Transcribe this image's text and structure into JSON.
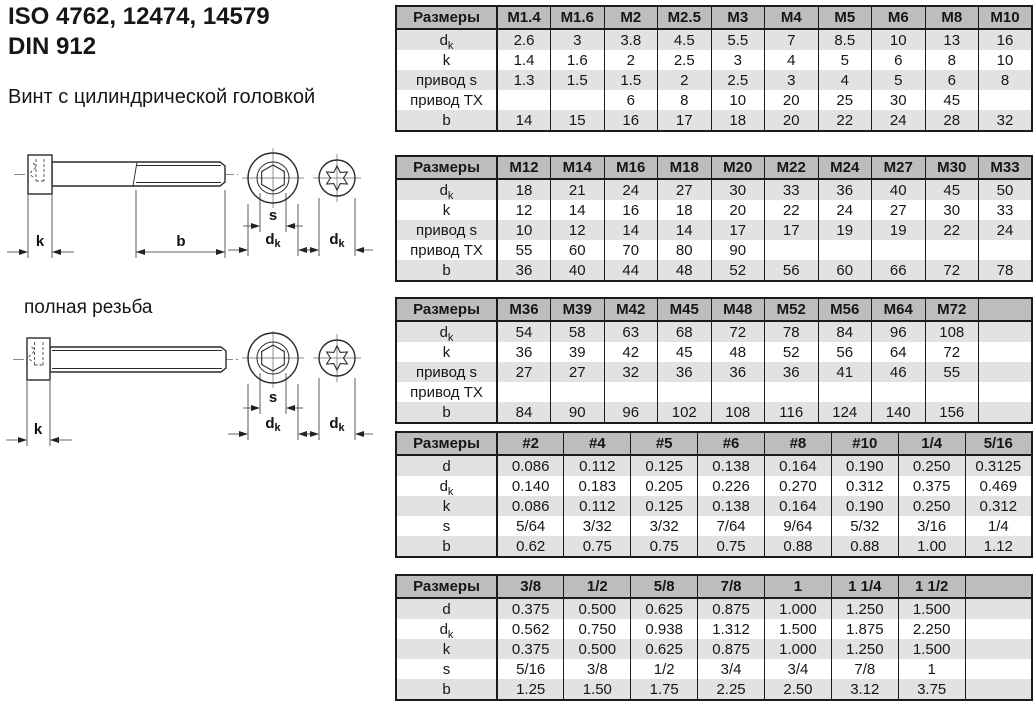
{
  "page": {
    "title_line1": "ISO 4762, 12474, 14579",
    "title_line2": "DIN 912",
    "subtitle": "Винт с цилиндрической головкой",
    "full_thread_label": "полная резьба"
  },
  "diagram_labels": {
    "k": "k",
    "b": "b",
    "s": "s",
    "d_base": "d",
    "d_sub": "k"
  },
  "colors": {
    "header_bg": "#bdbdbd",
    "stripe_bg": "#e2e2e2",
    "border": "#1b1b1b",
    "text": "#161616"
  },
  "tables": [
    {
      "columns": [
        "Размеры",
        "M1.4",
        "M1.6",
        "M2",
        "M2.5",
        "M3",
        "M4",
        "M5",
        "M6",
        "M8",
        "M10"
      ],
      "rows": [
        {
          "label": "d_k",
          "values": [
            "2.6",
            "3",
            "3.8",
            "4.5",
            "5.5",
            "7",
            "8.5",
            "10",
            "13",
            "16"
          ]
        },
        {
          "label": "k",
          "values": [
            "1.4",
            "1.6",
            "2",
            "2.5",
            "3",
            "4",
            "5",
            "6",
            "8",
            "10"
          ]
        },
        {
          "label": "привод s",
          "values": [
            "1.3",
            "1.5",
            "1.5",
            "2",
            "2.5",
            "3",
            "4",
            "5",
            "6",
            "8"
          ]
        },
        {
          "label": "привод TX",
          "values": [
            "",
            "",
            "6",
            "8",
            "10",
            "20",
            "25",
            "30",
            "45",
            ""
          ]
        },
        {
          "label": "b",
          "values": [
            "14",
            "15",
            "16",
            "17",
            "18",
            "20",
            "22",
            "24",
            "28",
            "32"
          ]
        }
      ]
    },
    {
      "columns": [
        "Размеры",
        "M12",
        "M14",
        "M16",
        "M18",
        "M20",
        "M22",
        "M24",
        "M27",
        "M30",
        "M33"
      ],
      "rows": [
        {
          "label": "d_k",
          "values": [
            "18",
            "21",
            "24",
            "27",
            "30",
            "33",
            "36",
            "40",
            "45",
            "50"
          ]
        },
        {
          "label": "k",
          "values": [
            "12",
            "14",
            "16",
            "18",
            "20",
            "22",
            "24",
            "27",
            "30",
            "33"
          ]
        },
        {
          "label": "привод s",
          "values": [
            "10",
            "12",
            "14",
            "14",
            "17",
            "17",
            "19",
            "19",
            "22",
            "24"
          ]
        },
        {
          "label": "привод TX",
          "values": [
            "55",
            "60",
            "70",
            "80",
            "90",
            "",
            "",
            "",
            "",
            ""
          ]
        },
        {
          "label": "b",
          "values": [
            "36",
            "40",
            "44",
            "48",
            "52",
            "56",
            "60",
            "66",
            "72",
            "78"
          ]
        }
      ]
    },
    {
      "columns": [
        "Размеры",
        "M36",
        "M39",
        "M42",
        "M45",
        "M48",
        "M52",
        "M56",
        "M64",
        "M72",
        ""
      ],
      "rows": [
        {
          "label": "d_k",
          "values": [
            "54",
            "58",
            "63",
            "68",
            "72",
            "78",
            "84",
            "96",
            "108",
            ""
          ]
        },
        {
          "label": "k",
          "values": [
            "36",
            "39",
            "42",
            "45",
            "48",
            "52",
            "56",
            "64",
            "72",
            ""
          ]
        },
        {
          "label": "привод s",
          "values": [
            "27",
            "27",
            "32",
            "36",
            "36",
            "36",
            "41",
            "46",
            "55",
            ""
          ]
        },
        {
          "label": "привод TX",
          "values": [
            "",
            "",
            "",
            "",
            "",
            "",
            "",
            "",
            "",
            ""
          ]
        },
        {
          "label": "b",
          "values": [
            "84",
            "90",
            "96",
            "102",
            "108",
            "116",
            "124",
            "140",
            "156",
            ""
          ]
        }
      ]
    },
    {
      "columns": [
        "Размеры",
        "#2",
        "#4",
        "#5",
        "#6",
        "#8",
        "#10",
        "1/4",
        "5/16"
      ],
      "rows": [
        {
          "label": "d",
          "values": [
            "0.086",
            "0.112",
            "0.125",
            "0.138",
            "0.164",
            "0.190",
            "0.250",
            "0.3125"
          ]
        },
        {
          "label": "d_k",
          "values": [
            "0.140",
            "0.183",
            "0.205",
            "0.226",
            "0.270",
            "0.312",
            "0.375",
            "0.469"
          ]
        },
        {
          "label": "k",
          "values": [
            "0.086",
            "0.112",
            "0.125",
            "0.138",
            "0.164",
            "0.190",
            "0.250",
            "0.312"
          ]
        },
        {
          "label": "s",
          "values": [
            "5/64",
            "3/32",
            "3/32",
            "7/64",
            "9/64",
            "5/32",
            "3/16",
            "1/4"
          ]
        },
        {
          "label": "b",
          "values": [
            "0.62",
            "0.75",
            "0.75",
            "0.75",
            "0.88",
            "0.88",
            "1.00",
            "1.12"
          ]
        }
      ]
    },
    {
      "columns": [
        "Размеры",
        "3/8",
        "1/2",
        "5/8",
        "7/8",
        "1",
        "1 1/4",
        "1 1/2",
        ""
      ],
      "rows": [
        {
          "label": "d",
          "values": [
            "0.375",
            "0.500",
            "0.625",
            "0.875",
            "1.000",
            "1.250",
            "1.500",
            ""
          ]
        },
        {
          "label": "d_k",
          "values": [
            "0.562",
            "0.750",
            "0.938",
            "1.312",
            "1.500",
            "1.875",
            "2.250",
            ""
          ]
        },
        {
          "label": "k",
          "values": [
            "0.375",
            "0.500",
            "0.625",
            "0.875",
            "1.000",
            "1.250",
            "1.500",
            ""
          ]
        },
        {
          "label": "s",
          "values": [
            "5/16",
            "3/8",
            "1/2",
            "3/4",
            "3/4",
            "7/8",
            "1",
            ""
          ]
        },
        {
          "label": "b",
          "values": [
            "1.25",
            "1.50",
            "1.75",
            "2.25",
            "2.50",
            "3.12",
            "3.75",
            ""
          ]
        }
      ]
    }
  ]
}
